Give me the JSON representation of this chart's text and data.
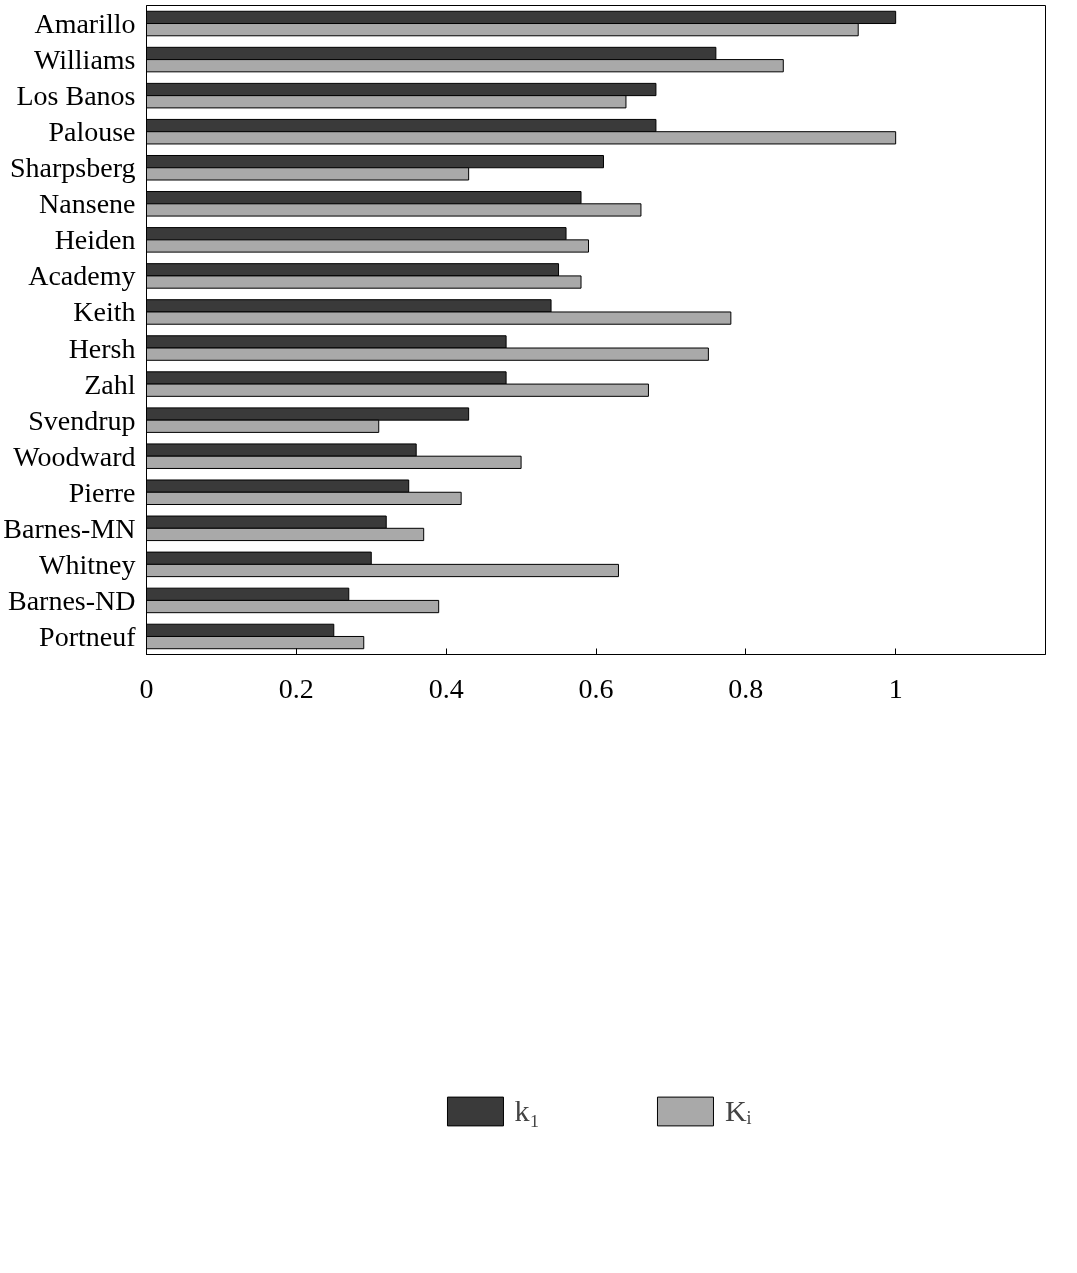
{
  "chart_data": {
    "type": "bar",
    "orientation": "horizontal",
    "categories": [
      "Amarillo",
      "Williams",
      "Los Banos",
      "Palouse",
      "Sharpsberg",
      "Nansene",
      "Heiden",
      "Academy",
      "Keith",
      "Hersh",
      "Zahl",
      "Svendrup",
      "Woodward",
      "Pierre",
      "Barnes-MN",
      "Whitney",
      "Barnes-ND",
      "Portneuf"
    ],
    "series": [
      {
        "name": "k₁",
        "color": "#3a3a3a",
        "values": [
          1.0,
          0.76,
          0.68,
          0.68,
          0.61,
          0.58,
          0.56,
          0.55,
          0.54,
          0.48,
          0.48,
          0.43,
          0.36,
          0.35,
          0.32,
          0.3,
          0.27,
          0.25
        ]
      },
      {
        "name": "Kᵢ",
        "color": "#a9a9a9",
        "values": [
          0.95,
          0.85,
          0.64,
          1.0,
          0.43,
          0.66,
          0.59,
          0.58,
          0.78,
          0.75,
          0.67,
          0.31,
          0.5,
          0.42,
          0.37,
          0.63,
          0.39,
          0.29
        ]
      }
    ],
    "xlim": [
      0,
      1.2
    ],
    "xticks": [
      0,
      0.2,
      0.4,
      0.6,
      0.8,
      1
    ],
    "grid": false,
    "legend": "bottom"
  }
}
